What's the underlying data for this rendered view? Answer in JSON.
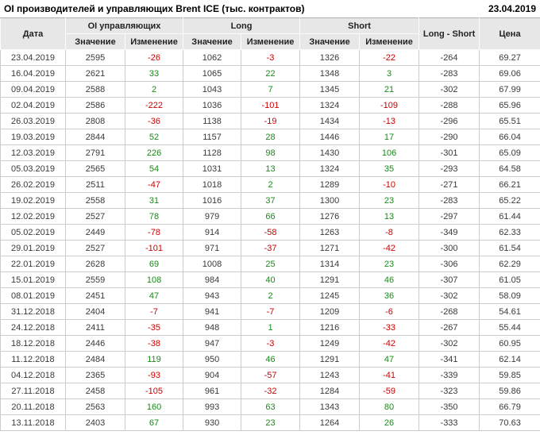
{
  "header": {
    "title": "OI производителей и управляющих Brent ICE (тыс. контрактов)",
    "date": "23.04.2019"
  },
  "colors": {
    "positive": "#1a8a1a",
    "negative": "#cc0000",
    "header_bg": "#e7e7e7",
    "grid": "#c9cdd1"
  },
  "table": {
    "columns": {
      "date": "Дата",
      "oi_group": "OI управляющих",
      "long_group": "Long",
      "short_group": "Short",
      "value": "Значение",
      "change": "Изменение",
      "long_short": "Long - Short",
      "price": "Цена"
    },
    "rows": [
      {
        "date": "23.04.2019",
        "oi": 2595,
        "oi_chg": -26,
        "long": 1062,
        "long_chg": -3,
        "short": 1326,
        "short_chg": -22,
        "ls": -264,
        "price": "69.27"
      },
      {
        "date": "16.04.2019",
        "oi": 2621,
        "oi_chg": 33,
        "long": 1065,
        "long_chg": 22,
        "short": 1348,
        "short_chg": 3,
        "ls": -283,
        "price": "69.06"
      },
      {
        "date": "09.04.2019",
        "oi": 2588,
        "oi_chg": 2,
        "long": 1043,
        "long_chg": 7,
        "short": 1345,
        "short_chg": 21,
        "ls": -302,
        "price": "67.99"
      },
      {
        "date": "02.04.2019",
        "oi": 2586,
        "oi_chg": -222,
        "long": 1036,
        "long_chg": -101,
        "short": 1324,
        "short_chg": -109,
        "ls": -288,
        "price": "65.96"
      },
      {
        "date": "26.03.2019",
        "oi": 2808,
        "oi_chg": -36,
        "long": 1138,
        "long_chg": -19,
        "short": 1434,
        "short_chg": -13,
        "ls": -296,
        "price": "65.51"
      },
      {
        "date": "19.03.2019",
        "oi": 2844,
        "oi_chg": 52,
        "long": 1157,
        "long_chg": 28,
        "short": 1446,
        "short_chg": 17,
        "ls": -290,
        "price": "66.04"
      },
      {
        "date": "12.03.2019",
        "oi": 2791,
        "oi_chg": 226,
        "long": 1128,
        "long_chg": 98,
        "short": 1430,
        "short_chg": 106,
        "ls": -301,
        "price": "65.09"
      },
      {
        "date": "05.03.2019",
        "oi": 2565,
        "oi_chg": 54,
        "long": 1031,
        "long_chg": 13,
        "short": 1324,
        "short_chg": 35,
        "ls": -293,
        "price": "64.58"
      },
      {
        "date": "26.02.2019",
        "oi": 2511,
        "oi_chg": -47,
        "long": 1018,
        "long_chg": 2,
        "short": 1289,
        "short_chg": -10,
        "ls": -271,
        "price": "66.21"
      },
      {
        "date": "19.02.2019",
        "oi": 2558,
        "oi_chg": 31,
        "long": 1016,
        "long_chg": 37,
        "short": 1300,
        "short_chg": 23,
        "ls": -283,
        "price": "65.22"
      },
      {
        "date": "12.02.2019",
        "oi": 2527,
        "oi_chg": 78,
        "long": 979,
        "long_chg": 66,
        "short": 1276,
        "short_chg": 13,
        "ls": -297,
        "price": "61.44"
      },
      {
        "date": "05.02.2019",
        "oi": 2449,
        "oi_chg": -78,
        "long": 914,
        "long_chg": -58,
        "short": 1263,
        "short_chg": -8,
        "ls": -349,
        "price": "62.33"
      },
      {
        "date": "29.01.2019",
        "oi": 2527,
        "oi_chg": -101,
        "long": 971,
        "long_chg": -37,
        "short": 1271,
        "short_chg": -42,
        "ls": -300,
        "price": "61.54"
      },
      {
        "date": "22.01.2019",
        "oi": 2628,
        "oi_chg": 69,
        "long": 1008,
        "long_chg": 25,
        "short": 1314,
        "short_chg": 23,
        "ls": -306,
        "price": "62.29"
      },
      {
        "date": "15.01.2019",
        "oi": 2559,
        "oi_chg": 108,
        "long": 984,
        "long_chg": 40,
        "short": 1291,
        "short_chg": 46,
        "ls": -307,
        "price": "61.05"
      },
      {
        "date": "08.01.2019",
        "oi": 2451,
        "oi_chg": 47,
        "long": 943,
        "long_chg": 2,
        "short": 1245,
        "short_chg": 36,
        "ls": -302,
        "price": "58.09"
      },
      {
        "date": "31.12.2018",
        "oi": 2404,
        "oi_chg": -7,
        "long": 941,
        "long_chg": -7,
        "short": 1209,
        "short_chg": -6,
        "ls": -268,
        "price": "54.61"
      },
      {
        "date": "24.12.2018",
        "oi": 2411,
        "oi_chg": -35,
        "long": 948,
        "long_chg": 1,
        "short": 1216,
        "short_chg": -33,
        "ls": -267,
        "price": "55.44"
      },
      {
        "date": "18.12.2018",
        "oi": 2446,
        "oi_chg": -38,
        "long": 947,
        "long_chg": -3,
        "short": 1249,
        "short_chg": -42,
        "ls": -302,
        "price": "60.95"
      },
      {
        "date": "11.12.2018",
        "oi": 2484,
        "oi_chg": 119,
        "long": 950,
        "long_chg": 46,
        "short": 1291,
        "short_chg": 47,
        "ls": -341,
        "price": "62.14"
      },
      {
        "date": "04.12.2018",
        "oi": 2365,
        "oi_chg": -93,
        "long": 904,
        "long_chg": -57,
        "short": 1243,
        "short_chg": -41,
        "ls": -339,
        "price": "59.85"
      },
      {
        "date": "27.11.2018",
        "oi": 2458,
        "oi_chg": -105,
        "long": 961,
        "long_chg": -32,
        "short": 1284,
        "short_chg": -59,
        "ls": -323,
        "price": "59.86"
      },
      {
        "date": "20.11.2018",
        "oi": 2563,
        "oi_chg": 160,
        "long": 993,
        "long_chg": 63,
        "short": 1343,
        "short_chg": 80,
        "ls": -350,
        "price": "66.79"
      },
      {
        "date": "13.11.2018",
        "oi": 2403,
        "oi_chg": 67,
        "long": 930,
        "long_chg": 23,
        "short": 1264,
        "short_chg": 26,
        "ls": -333,
        "price": "70.63"
      }
    ]
  }
}
